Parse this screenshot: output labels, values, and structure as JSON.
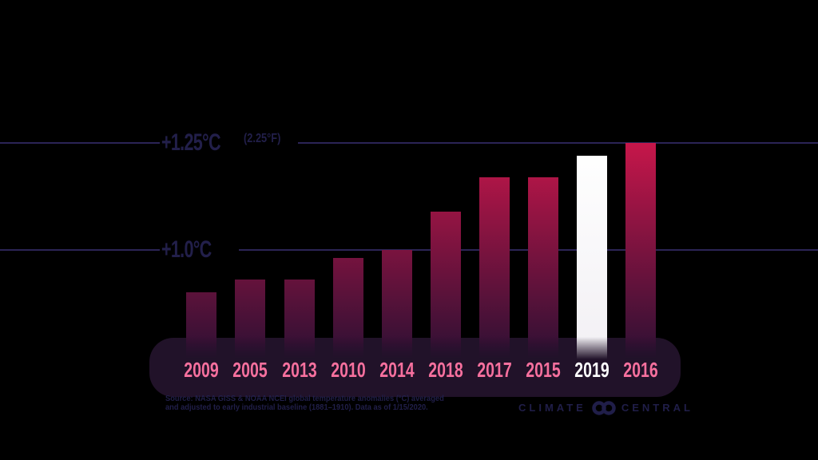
{
  "colors": {
    "background": "#000000",
    "gridline": "#2b2456",
    "axis_label": "#221f4a",
    "bar_top": "#c6164a",
    "bar_bottom": "#2c1033",
    "bar_highlight": "#ffffff",
    "year_label": "#f7709e",
    "year_label_highlight": "#ffffff",
    "pill": "#211229",
    "source_text": "#211f4a",
    "logo": "#201e49"
  },
  "chart_data": {
    "type": "bar",
    "title": "",
    "categories": [
      "2009",
      "2005",
      "2013",
      "2010",
      "2014",
      "2018",
      "2017",
      "2015",
      "2019",
      "2016"
    ],
    "values": [
      0.9,
      0.93,
      0.93,
      0.98,
      1.0,
      1.09,
      1.17,
      1.17,
      1.22,
      1.25
    ],
    "unit": "°C",
    "highlight_category": "2019",
    "highlight_index": 8,
    "ylim": [
      0.75,
      1.3
    ],
    "grid": "on",
    "legend": "none",
    "gridlines": [
      {
        "value": 1.25,
        "label_c": "+1.25°C",
        "label_f": "(2.25°F)"
      },
      {
        "value": 1.0,
        "label_c": "+1.0°C",
        "label_f": ""
      }
    ]
  },
  "footer": {
    "source_line1": "Source: NASA GISS & NOAA NCEI global temperature anomalies (°C) averaged",
    "source_line2": "and adjusted to early industrial baseline (1881–1910). Data as of 1/15/2020.",
    "logo_left": "CLIMATE",
    "logo_right": "CENTRAL"
  }
}
